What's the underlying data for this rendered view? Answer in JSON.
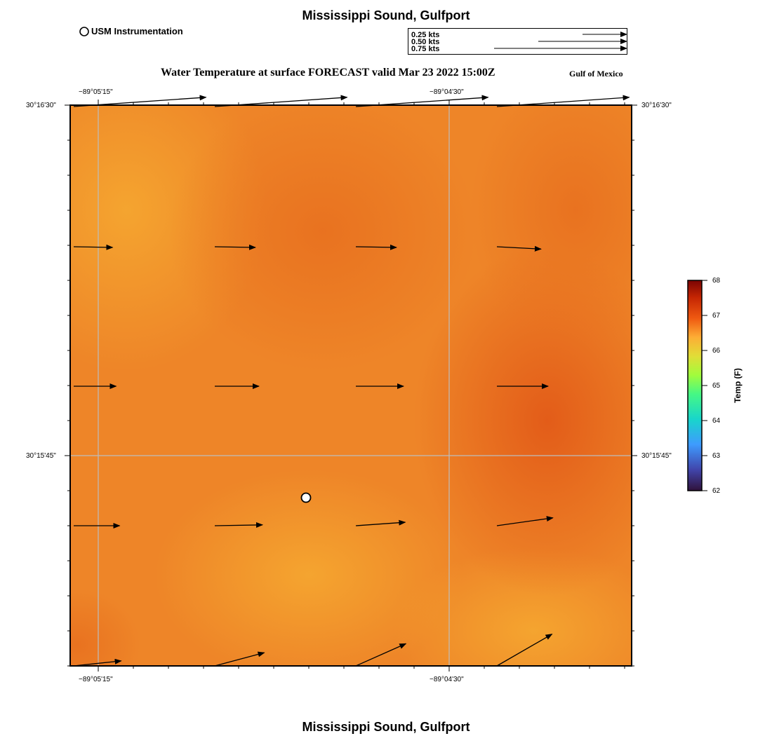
{
  "header": {
    "title": "Mississippi Sound, Gulfport",
    "subtitle": "Water Temperature at surface FORECAST valid Mar 23 2022 15:00Z",
    "region": "Gulf of Mexico",
    "station_legend": "USM Instrumentation"
  },
  "footer": {
    "title": "Mississippi Sound, Gulfport"
  },
  "vector_scale": {
    "units": "kts",
    "entries": [
      {
        "label": "0.25 kts",
        "speed": 0.25
      },
      {
        "label": "0.50 kts",
        "speed": 0.5
      },
      {
        "label": "0.75 kts",
        "speed": 0.75
      }
    ]
  },
  "axes": {
    "lon_ticks": [
      "−89°05'15\"",
      "−89°04'30\""
    ],
    "lat_ticks": [
      "30°16'30\"",
      "30°15'45\""
    ]
  },
  "colorbar": {
    "label": "Temp (F)",
    "ticks": [
      "68",
      "67",
      "66",
      "65",
      "64",
      "63",
      "62"
    ],
    "min": 62,
    "max": 68,
    "colormap": "turbo"
  },
  "colors": {
    "field_low": "#f4a430",
    "field_mid": "#ec7a24",
    "field_high": "#e25a18",
    "gridline": "#bdbdbd"
  },
  "map_data": {
    "station": {
      "name": "USM Instrumentation",
      "icon": "station-circle-icon"
    },
    "current_vectors": [
      {
        "row": 0,
        "col": 0,
        "speed": 0.75,
        "dir_deg": 4
      },
      {
        "row": 0,
        "col": 1,
        "speed": 0.75,
        "dir_deg": 4
      },
      {
        "row": 0,
        "col": 2,
        "speed": 0.75,
        "dir_deg": 4
      },
      {
        "row": 0,
        "col": 3,
        "speed": 0.75,
        "dir_deg": 4
      },
      {
        "row": 1,
        "col": 0,
        "speed": 0.22,
        "dir_deg": -1
      },
      {
        "row": 1,
        "col": 1,
        "speed": 0.23,
        "dir_deg": -1
      },
      {
        "row": 1,
        "col": 2,
        "speed": 0.23,
        "dir_deg": -1
      },
      {
        "row": 1,
        "col": 3,
        "speed": 0.25,
        "dir_deg": -3
      },
      {
        "row": 2,
        "col": 0,
        "speed": 0.24,
        "dir_deg": 0
      },
      {
        "row": 2,
        "col": 1,
        "speed": 0.25,
        "dir_deg": 0
      },
      {
        "row": 2,
        "col": 2,
        "speed": 0.27,
        "dir_deg": 0
      },
      {
        "row": 2,
        "col": 3,
        "speed": 0.29,
        "dir_deg": 0
      },
      {
        "row": 3,
        "col": 0,
        "speed": 0.26,
        "dir_deg": 0
      },
      {
        "row": 3,
        "col": 1,
        "speed": 0.27,
        "dir_deg": 1
      },
      {
        "row": 3,
        "col": 2,
        "speed": 0.28,
        "dir_deg": 4
      },
      {
        "row": 3,
        "col": 3,
        "speed": 0.32,
        "dir_deg": 8
      },
      {
        "row": 4,
        "col": 0,
        "speed": 0.27,
        "dir_deg": 6
      },
      {
        "row": 4,
        "col": 1,
        "speed": 0.29,
        "dir_deg": 15
      },
      {
        "row": 4,
        "col": 2,
        "speed": 0.31,
        "dir_deg": 24
      },
      {
        "row": 4,
        "col": 3,
        "speed": 0.36,
        "dir_deg": 30
      }
    ]
  }
}
